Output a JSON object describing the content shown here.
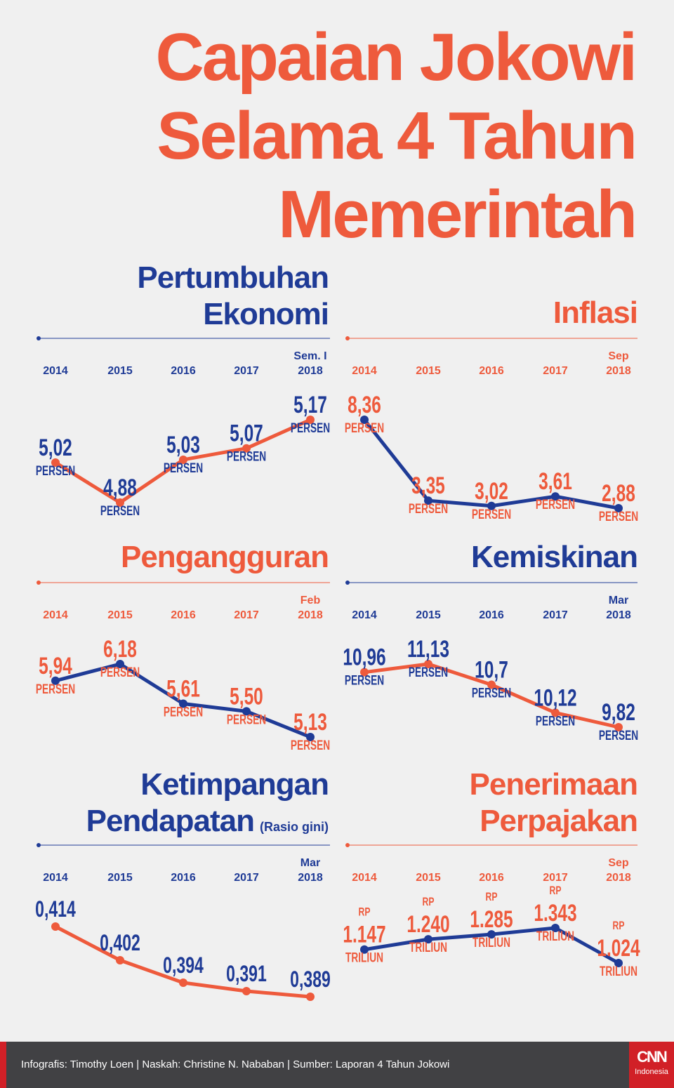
{
  "title": [
    "Capaian Jokowi",
    "Selama 4 Tahun",
    "Memerintah"
  ],
  "colors": {
    "orange": "#ee5a3c",
    "blue": "#1f3b96",
    "background": "#f0f0f0",
    "footer": "#414144",
    "brand_red": "#d12027"
  },
  "chart_data": [
    {
      "type": "line",
      "title": "Pertumbuhan Ekonomi",
      "categories": [
        "2014",
        "2015",
        "2016",
        "2017",
        "Sem. I|2018"
      ],
      "values": [
        5.02,
        4.88,
        5.03,
        5.07,
        5.17
      ],
      "labels": [
        "5,02",
        "4,88",
        "5,03",
        "5,07",
        "5,17"
      ],
      "unit": "PERSEN"
    },
    {
      "type": "line",
      "title": "Inflasi",
      "categories": [
        "2014",
        "2015",
        "2016",
        "2017",
        "Sep|2018"
      ],
      "values": [
        8.36,
        3.35,
        3.02,
        3.61,
        2.88
      ],
      "labels": [
        "8,36",
        "3,35",
        "3,02",
        "3,61",
        "2,88"
      ],
      "unit": "PERSEN"
    },
    {
      "type": "line",
      "title": "Pengangguran",
      "categories": [
        "2014",
        "2015",
        "2016",
        "2017",
        "Feb|2018"
      ],
      "values": [
        5.94,
        6.18,
        5.61,
        5.5,
        5.13
      ],
      "labels": [
        "5,94",
        "6,18",
        "5,61",
        "5,50",
        "5,13"
      ],
      "unit": "PERSEN"
    },
    {
      "type": "line",
      "title": "Kemiskinan",
      "categories": [
        "2014",
        "2015",
        "2016",
        "2017",
        "Mar|2018"
      ],
      "values": [
        10.96,
        11.13,
        10.7,
        10.12,
        9.82
      ],
      "labels": [
        "10,96",
        "11,13",
        "10,7",
        "10,12",
        "9,82"
      ],
      "unit": "PERSEN"
    },
    {
      "type": "line",
      "title": "Ketimpangan Pendapatan",
      "subtitle": "(Rasio gini)",
      "categories": [
        "2014",
        "2015",
        "2016",
        "2017",
        "Mar|2018"
      ],
      "values": [
        0.414,
        0.402,
        0.394,
        0.391,
        0.389
      ],
      "labels": [
        "0,414",
        "0,402",
        "0,394",
        "0,391",
        "0,389"
      ],
      "unit": ""
    },
    {
      "type": "line",
      "title": "Penerimaan Perpajakan",
      "categories": [
        "2014",
        "2015",
        "2016",
        "2017",
        "Sep|2018"
      ],
      "values": [
        1147,
        1240,
        1285,
        1343,
        1024
      ],
      "labels": [
        "1.147",
        "1.240",
        "1.285",
        "1.343",
        "1.024"
      ],
      "prefix": "RP",
      "unit": "TRILIUN"
    }
  ],
  "footer": {
    "credits": "Infografis: Timothy Loen | Naskah: Christine N. Nababan | Sumber: Laporan 4 Tahun Jokowi",
    "logo": "CNN",
    "logo_sub": "Indonesia"
  }
}
